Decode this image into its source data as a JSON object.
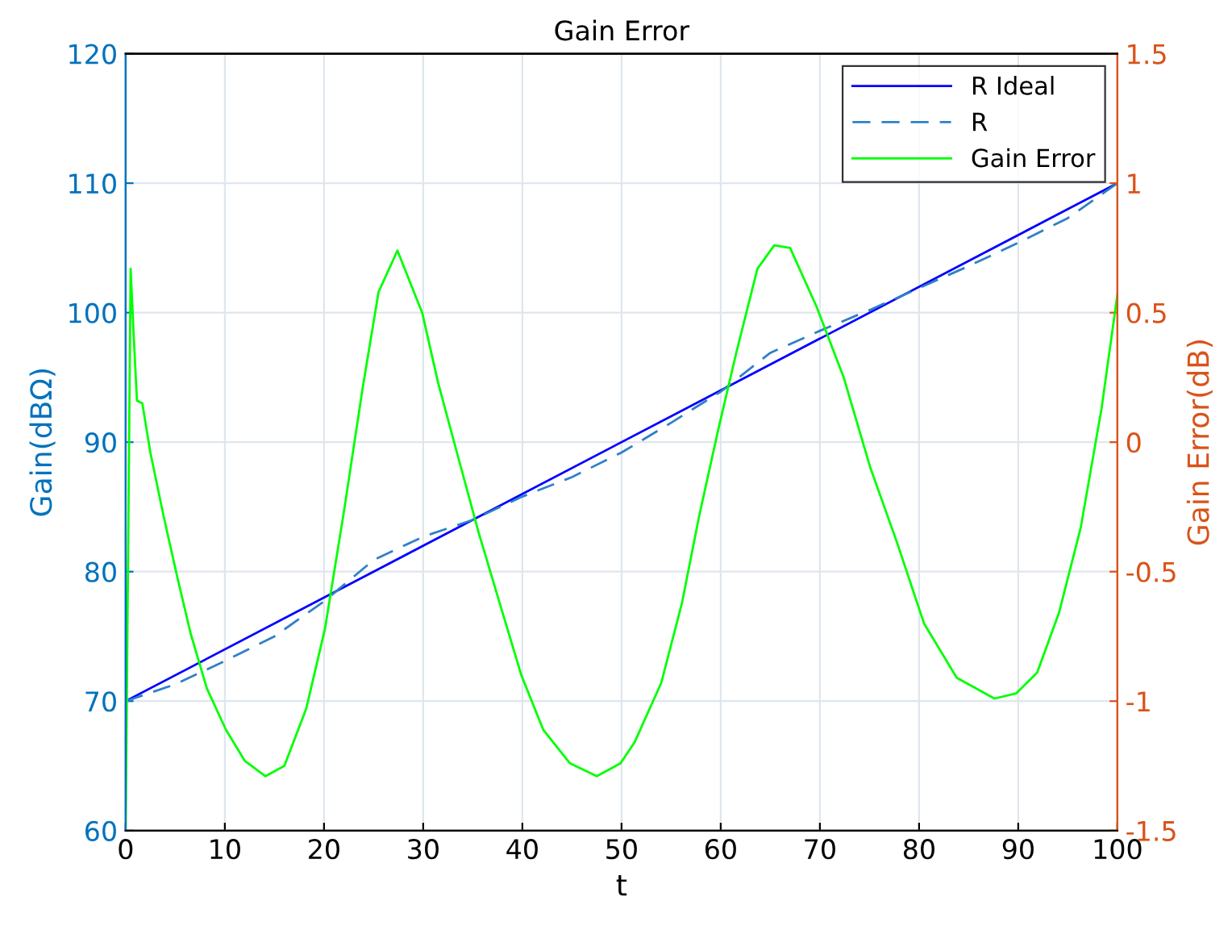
{
  "chart_data": {
    "type": "line",
    "title": "Gain Error",
    "xlabel": "t",
    "ylabel": "Gain(dBΩ)",
    "y2label": "Gain Error(dB)",
    "xlim": [
      0,
      100
    ],
    "xticks": [
      0,
      10,
      20,
      30,
      40,
      50,
      60,
      70,
      80,
      90,
      100
    ],
    "ylim": [
      60,
      120
    ],
    "yticks": [
      60,
      70,
      80,
      90,
      100,
      110,
      120
    ],
    "y2lim": [
      -1.5,
      1.5
    ],
    "y2ticks": [
      -1.5,
      -1,
      -0.5,
      0,
      0.5,
      1,
      1.5
    ],
    "grid": true,
    "legend": "top right",
    "series": [
      {
        "name": "R Ideal",
        "color": "#0000ff",
        "line_style": "solid",
        "x": [
          0,
          100
        ],
        "values": [
          70,
          110
        ]
      },
      {
        "name": "R",
        "color": "#2f80c8",
        "line_style": "dashed",
        "x": [
          0,
          5,
          10,
          15,
          20,
          25,
          30,
          35,
          40,
          45,
          50,
          55,
          60,
          65,
          70,
          75,
          80,
          85,
          90,
          95,
          100
        ],
        "values": [
          70,
          71.3,
          73.1,
          75.0,
          77.7,
          80.9,
          82.7,
          84.0,
          85.8,
          87.3,
          89.2,
          91.5,
          93.9,
          96.9,
          98.6,
          100.2,
          101.9,
          103.6,
          105.4,
          107.3,
          110
        ]
      },
      {
        "name": "Gain Error",
        "color": "#00ff00",
        "line_style": "solid",
        "axis": "y2",
        "x": [
          0,
          0.5,
          0.8,
          1.14,
          1.68,
          2.49,
          3.85,
          5.2,
          6.56,
          8.18,
          10.1,
          12.0,
          14.1,
          16.0,
          18.2,
          20.1,
          22.0,
          23.9,
          25.5,
          27.4,
          29.9,
          31.5,
          33.4,
          35.6,
          37.7,
          39.9,
          42.1,
          44.8,
          47.5,
          49.9,
          51.3,
          54.0,
          56.1,
          57.8,
          59.7,
          61.6,
          63.7,
          65.4,
          67.0,
          69.7,
          72.4,
          75.1,
          77.8,
          80.5,
          83.8,
          87.6,
          89.8,
          91.9,
          94.1,
          96.3,
          98.4,
          100
        ],
        "values": [
          -1.5,
          0.67,
          0.42,
          0.16,
          0.15,
          -0.04,
          -0.29,
          -0.52,
          -0.74,
          -0.95,
          -1.11,
          -1.23,
          -1.29,
          -1.25,
          -1.03,
          -0.72,
          -0.27,
          0.21,
          0.58,
          0.74,
          0.5,
          0.23,
          -0.04,
          -0.35,
          -0.62,
          -0.9,
          -1.11,
          -1.24,
          -1.29,
          -1.24,
          -1.16,
          -0.93,
          -0.62,
          -0.29,
          0.04,
          0.35,
          0.67,
          0.76,
          0.75,
          0.52,
          0.25,
          -0.1,
          -0.39,
          -0.7,
          -0.91,
          -0.99,
          -0.97,
          -0.89,
          -0.66,
          -0.33,
          0.13,
          0.57
        ]
      }
    ]
  }
}
